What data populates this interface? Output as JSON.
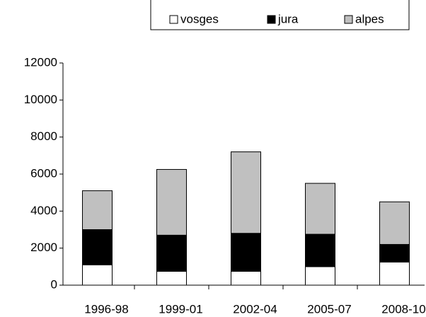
{
  "chart_data": {
    "type": "stacked_bar",
    "categories": [
      "1996-98",
      "1999-01",
      "2002-04",
      "2005-07",
      "2008-10"
    ],
    "series": [
      {
        "name": "vosges",
        "color": "#ffffff",
        "values": [
          1100,
          750,
          750,
          1000,
          1250
        ]
      },
      {
        "name": "jura",
        "color": "#000000",
        "values": [
          1900,
          1950,
          2050,
          1750,
          950
        ]
      },
      {
        "name": "alpes",
        "color": "#c0c0c0",
        "values": [
          2100,
          3550,
          4400,
          2750,
          2300
        ]
      }
    ],
    "ylim": [
      0,
      12000
    ],
    "yticks": [
      0,
      2000,
      4000,
      6000,
      8000,
      10000,
      12000
    ],
    "grid": false,
    "legend": "top"
  }
}
